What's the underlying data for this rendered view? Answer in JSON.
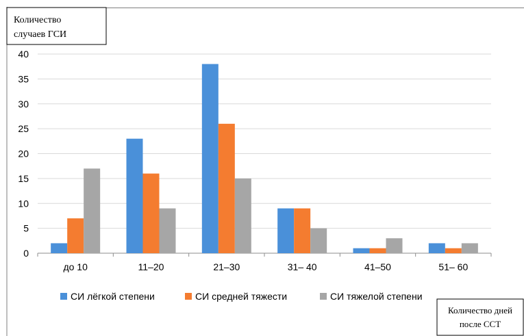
{
  "chart_data": {
    "type": "bar",
    "title": "",
    "ylabel_lines": [
      "Количество",
      "случаев  ГСИ"
    ],
    "xlabel_lines": [
      "Количество дней",
      "после ССТ"
    ],
    "categories": [
      "до 10",
      "11–20",
      "21–30",
      "31– 40",
      "41–50",
      "51– 60"
    ],
    "series": [
      {
        "name": "СИ лёгкой степени",
        "color": "#4A90D9",
        "values": [
          2,
          23,
          38,
          9,
          1,
          2
        ]
      },
      {
        "name": "СИ средней тяжести",
        "color": "#F47C30",
        "values": [
          7,
          16,
          26,
          9,
          1,
          1
        ]
      },
      {
        "name": "СИ тяжелой степени",
        "color": "#A6A6A6",
        "values": [
          17,
          9,
          15,
          5,
          3,
          2
        ]
      }
    ],
    "ylim": [
      0,
      40
    ],
    "yticks": [
      0,
      5,
      10,
      15,
      20,
      25,
      30,
      35,
      40
    ],
    "grid": true,
    "legend_position": "bottom"
  }
}
